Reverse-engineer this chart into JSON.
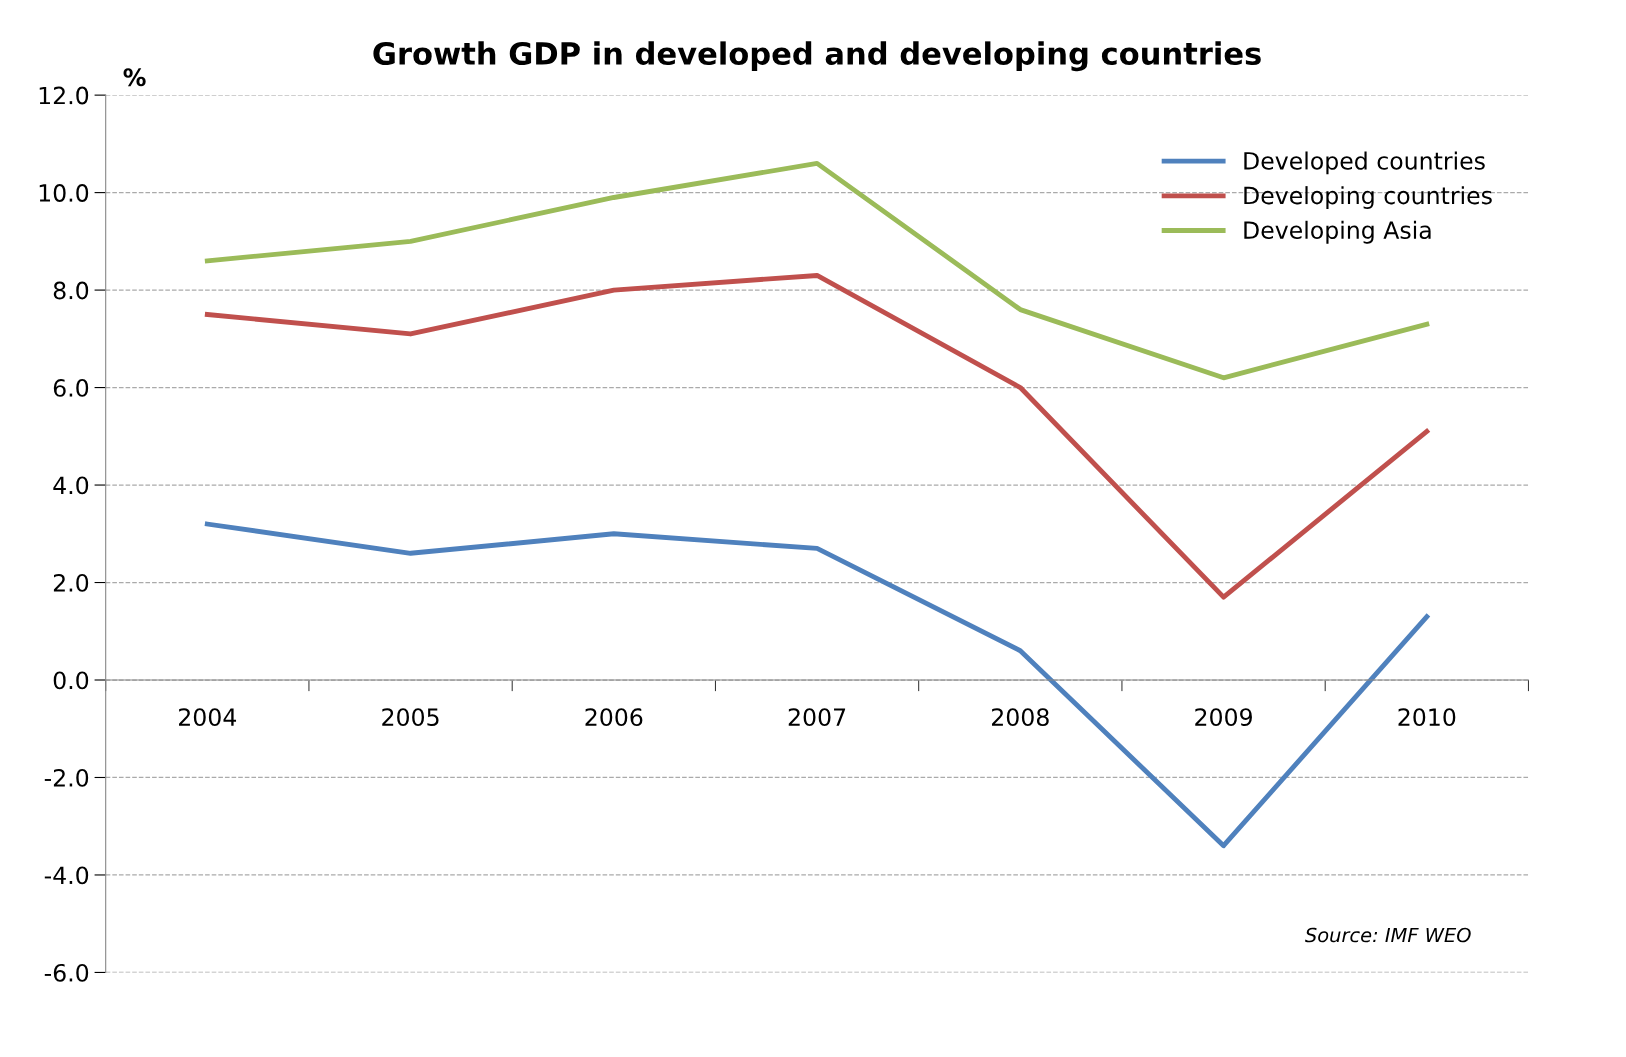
{
  "chart_data": {
    "type": "line",
    "title": "Growth GDP in developed and developing countries",
    "ylabel": "%",
    "categories": [
      "2004",
      "2005",
      "2006",
      "2007",
      "2008",
      "2009",
      "2010"
    ],
    "series": [
      {
        "name": "Developed countries",
        "color": "#4f81bd",
        "values": [
          3.2,
          2.6,
          3.0,
          2.7,
          0.6,
          -3.4,
          1.3
        ]
      },
      {
        "name": "Developing countries",
        "color": "#c0504d",
        "values": [
          7.5,
          7.1,
          8.0,
          8.3,
          6.0,
          1.7,
          5.1
        ]
      },
      {
        "name": "Developing Asia",
        "color": "#9bbb59",
        "values": [
          8.6,
          9.0,
          9.9,
          10.6,
          7.6,
          6.2,
          7.3
        ]
      }
    ],
    "ylim": [
      -6,
      12
    ],
    "yticks": [
      {
        "value": -6,
        "label": "-6.0"
      },
      {
        "value": -4,
        "label": "-4.0"
      },
      {
        "value": -2,
        "label": "-2.0"
      },
      {
        "value": 0,
        "label": "0.0"
      },
      {
        "value": 2,
        "label": "2.0"
      },
      {
        "value": 4,
        "label": "4.0"
      },
      {
        "value": 6,
        "label": "6.0"
      },
      {
        "value": 8,
        "label": "8.0"
      },
      {
        "value": 10,
        "label": "10.0"
      },
      {
        "value": 12,
        "label": "12.0"
      }
    ],
    "grid": "y",
    "legend": "top right",
    "marker": "none",
    "line_style": "solid",
    "annotations": [
      "Source: IMF WEO"
    ]
  }
}
